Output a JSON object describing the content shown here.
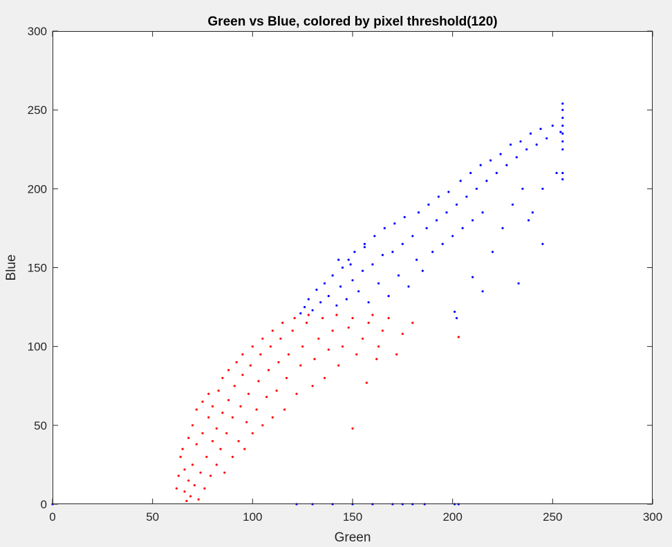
{
  "chart_data": {
    "type": "scatter",
    "title": "Green vs Blue, colored by pixel threshold(120)",
    "xlabel": "Green",
    "ylabel": "Blue",
    "xlim": [
      0,
      300
    ],
    "ylim": [
      0,
      300
    ],
    "xticks": [
      "0",
      "50",
      "100",
      "150",
      "200",
      "250",
      "300"
    ],
    "yticks": [
      "0",
      "50",
      "100",
      "150",
      "200",
      "250",
      "300"
    ],
    "grid": false,
    "threshold": 120,
    "colors": {
      "above": "#0000ff",
      "below": "#ff0000",
      "background": "#ffffff",
      "figure": "#f0f0f0"
    },
    "series": [
      {
        "color": "#ff0000",
        "points": [
          [
            62,
            10
          ],
          [
            63,
            18
          ],
          [
            64,
            30
          ],
          [
            65,
            35
          ],
          [
            66,
            8
          ],
          [
            66,
            22
          ],
          [
            67,
            2
          ],
          [
            68,
            15
          ],
          [
            68,
            42
          ],
          [
            69,
            5
          ],
          [
            70,
            25
          ],
          [
            70,
            50
          ],
          [
            71,
            12
          ],
          [
            72,
            38
          ],
          [
            72,
            60
          ],
          [
            73,
            3
          ],
          [
            74,
            20
          ],
          [
            75,
            45
          ],
          [
            75,
            65
          ],
          [
            76,
            10
          ],
          [
            77,
            30
          ],
          [
            78,
            55
          ],
          [
            78,
            70
          ],
          [
            79,
            18
          ],
          [
            80,
            40
          ],
          [
            80,
            62
          ],
          [
            82,
            25
          ],
          [
            82,
            48
          ],
          [
            83,
            72
          ],
          [
            84,
            35
          ],
          [
            85,
            58
          ],
          [
            85,
            80
          ],
          [
            86,
            20
          ],
          [
            87,
            45
          ],
          [
            88,
            66
          ],
          [
            88,
            85
          ],
          [
            90,
            30
          ],
          [
            90,
            55
          ],
          [
            91,
            75
          ],
          [
            92,
            90
          ],
          [
            93,
            40
          ],
          [
            94,
            62
          ],
          [
            95,
            82
          ],
          [
            95,
            95
          ],
          [
            96,
            35
          ],
          [
            97,
            52
          ],
          [
            98,
            70
          ],
          [
            99,
            88
          ],
          [
            100,
            100
          ],
          [
            100,
            45
          ],
          [
            102,
            60
          ],
          [
            103,
            78
          ],
          [
            104,
            95
          ],
          [
            105,
            105
          ],
          [
            105,
            50
          ],
          [
            107,
            68
          ],
          [
            108,
            85
          ],
          [
            109,
            100
          ],
          [
            110,
            110
          ],
          [
            110,
            55
          ],
          [
            112,
            72
          ],
          [
            113,
            90
          ],
          [
            114,
            105
          ],
          [
            115,
            115
          ],
          [
            116,
            60
          ],
          [
            117,
            80
          ],
          [
            118,
            95
          ],
          [
            120,
            110
          ],
          [
            121,
            118
          ],
          [
            122,
            70
          ],
          [
            124,
            88
          ],
          [
            125,
            100
          ],
          [
            127,
            115
          ],
          [
            128,
            120
          ],
          [
            130,
            75
          ],
          [
            131,
            92
          ],
          [
            133,
            105
          ],
          [
            135,
            118
          ],
          [
            136,
            80
          ],
          [
            138,
            98
          ],
          [
            140,
            110
          ],
          [
            142,
            120
          ],
          [
            143,
            88
          ],
          [
            145,
            100
          ],
          [
            148,
            112
          ],
          [
            150,
            118
          ],
          [
            152,
            95
          ],
          [
            155,
            105
          ],
          [
            158,
            115
          ],
          [
            160,
            120
          ],
          [
            163,
            100
          ],
          [
            165,
            110
          ],
          [
            168,
            118
          ],
          [
            172,
            95
          ],
          [
            175,
            108
          ],
          [
            180,
            115
          ],
          [
            150,
            48
          ],
          [
            157,
            77
          ],
          [
            162,
            92
          ],
          [
            203,
            106
          ]
        ]
      },
      {
        "color": "#0000ff",
        "points": [
          [
            124,
            121
          ],
          [
            126,
            125
          ],
          [
            128,
            130
          ],
          [
            130,
            123
          ],
          [
            132,
            136
          ],
          [
            134,
            128
          ],
          [
            136,
            140
          ],
          [
            138,
            132
          ],
          [
            140,
            145
          ],
          [
            142,
            126
          ],
          [
            144,
            138
          ],
          [
            145,
            150
          ],
          [
            147,
            130
          ],
          [
            148,
            155
          ],
          [
            150,
            142
          ],
          [
            151,
            160
          ],
          [
            153,
            135
          ],
          [
            155,
            148
          ],
          [
            156,
            165
          ],
          [
            158,
            128
          ],
          [
            160,
            152
          ],
          [
            161,
            170
          ],
          [
            163,
            140
          ],
          [
            165,
            158
          ],
          [
            166,
            175
          ],
          [
            168,
            132
          ],
          [
            170,
            160
          ],
          [
            171,
            178
          ],
          [
            173,
            145
          ],
          [
            175,
            165
          ],
          [
            176,
            182
          ],
          [
            178,
            138
          ],
          [
            180,
            170
          ],
          [
            182,
            155
          ],
          [
            183,
            185
          ],
          [
            185,
            148
          ],
          [
            187,
            175
          ],
          [
            188,
            190
          ],
          [
            190,
            160
          ],
          [
            192,
            180
          ],
          [
            193,
            195
          ],
          [
            195,
            165
          ],
          [
            197,
            185
          ],
          [
            198,
            198
          ],
          [
            200,
            170
          ],
          [
            202,
            190
          ],
          [
            204,
            205
          ],
          [
            205,
            175
          ],
          [
            207,
            195
          ],
          [
            209,
            210
          ],
          [
            210,
            180
          ],
          [
            212,
            200
          ],
          [
            214,
            215
          ],
          [
            215,
            185
          ],
          [
            217,
            205
          ],
          [
            219,
            218
          ],
          [
            220,
            160
          ],
          [
            222,
            210
          ],
          [
            224,
            222
          ],
          [
            225,
            175
          ],
          [
            227,
            215
          ],
          [
            229,
            228
          ],
          [
            230,
            190
          ],
          [
            232,
            220
          ],
          [
            234,
            230
          ],
          [
            235,
            200
          ],
          [
            237,
            225
          ],
          [
            239,
            235
          ],
          [
            240,
            185
          ],
          [
            242,
            228
          ],
          [
            244,
            238
          ],
          [
            245,
            200
          ],
          [
            247,
            232
          ],
          [
            250,
            240
          ],
          [
            252,
            210
          ],
          [
            254,
            236
          ],
          [
            255,
            225
          ],
          [
            255,
            230
          ],
          [
            255,
            235
          ],
          [
            255,
            240
          ],
          [
            255,
            245
          ],
          [
            255,
            250
          ],
          [
            255,
            254
          ],
          [
            255,
            206
          ],
          [
            255,
            210
          ],
          [
            233,
            140
          ],
          [
            215,
            135
          ],
          [
            210,
            144
          ],
          [
            238,
            180
          ],
          [
            245,
            165
          ],
          [
            201,
            122
          ],
          [
            202,
            118
          ],
          [
            156,
            163
          ],
          [
            143,
            155
          ],
          [
            149,
            152
          ],
          [
            0,
            0
          ],
          [
            122,
            0
          ],
          [
            130,
            0
          ],
          [
            140,
            0
          ],
          [
            150,
            0
          ],
          [
            160,
            0
          ],
          [
            170,
            0
          ],
          [
            175,
            0
          ],
          [
            180,
            0
          ],
          [
            186,
            0
          ],
          [
            201,
            0
          ],
          [
            203,
            0
          ]
        ]
      }
    ]
  }
}
